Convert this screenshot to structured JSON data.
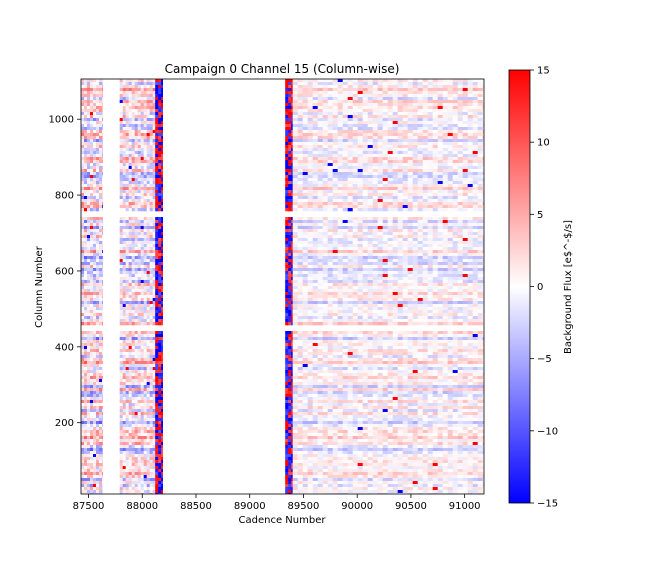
{
  "chart_data": {
    "type": "heatmap",
    "title": "Campaign 0 Channel 15 (Column-wise)",
    "xlabel": "Cadence Number",
    "ylabel": "Column Number",
    "xlim": [
      87430,
      91180
    ],
    "ylim": [
      12,
      1106
    ],
    "xticks": [
      87500,
      88000,
      88500,
      89000,
      89500,
      90000,
      90500,
      91000
    ],
    "yticks": [
      200,
      400,
      600,
      800,
      1000
    ],
    "colorbar": {
      "label": "Background Flux [e$^-$/s]",
      "range": [
        -15,
        15
      ],
      "ticks": [
        -15,
        -10,
        -5,
        0,
        5,
        10,
        15
      ],
      "colors": [
        "#0000ff",
        "#ffffff",
        "#ff0000"
      ]
    },
    "data_segments": [
      {
        "x": [
          87430,
          87630
        ],
        "amplitude": 10
      },
      {
        "x": [
          87790,
          88120
        ],
        "amplitude": 9
      },
      {
        "x": [
          88120,
          88190
        ],
        "amplitude": 15
      },
      {
        "x": [
          89330,
          89400
        ],
        "amplitude": 15
      },
      {
        "x": [
          89400,
          91180
        ],
        "amplitude": 5
      }
    ],
    "gaps_y": [
      [
        448,
        460
      ],
      [
        745,
        760
      ]
    ],
    "grid": false
  }
}
